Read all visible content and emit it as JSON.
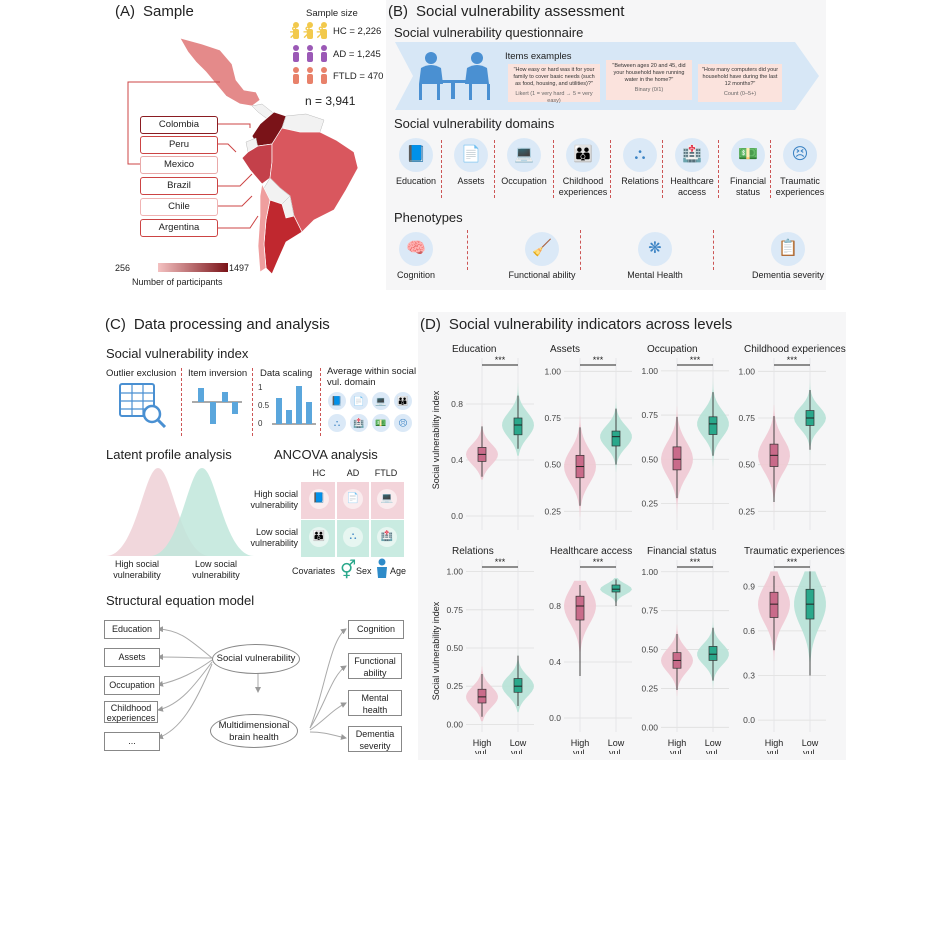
{
  "panel_a": {
    "title_letter": "(A)",
    "title": "Sample",
    "sample_size_label": "Sample size",
    "groups": [
      {
        "label": "HC = 2,226",
        "color": "#f2c94c"
      },
      {
        "label": "AD = 1,245",
        "color": "#9b59b6"
      },
      {
        "label": "FTLD = 470",
        "color": "#e8816a"
      }
    ],
    "total": "n = 3,941",
    "countries": [
      "Colombia",
      "Peru",
      "Mexico",
      "Brazil",
      "Chile",
      "Argentina"
    ],
    "colorbar_min": "256",
    "colorbar_max": "1497",
    "colorbar_label": "Number of participants"
  },
  "panel_b": {
    "title_letter": "(B)",
    "title": "Social vulnerability assessment",
    "questionnaire_title": "Social vulnerability questionnaire",
    "items_examples_label": "Items examples",
    "items": [
      {
        "text": "\"How easy or hard was it for your family to cover basic needs (such as food, housing, and utilities)?\"",
        "scale": "Likert (1 = very hard → 5 = very easy)"
      },
      {
        "text": "\"Between ages 20 and 45, did your household have running water in the home?\"",
        "scale": "Binary (0/1)"
      },
      {
        "text": "\"How many computers did your household have during the last 12 months?\"",
        "scale": "Count (0–5+)"
      }
    ],
    "domains_title": "Social vulnerability domains",
    "domains": [
      {
        "label": "Education",
        "icon": "book-icon",
        "glyph": "📘"
      },
      {
        "label": "Assets",
        "icon": "document-icon",
        "glyph": "📄"
      },
      {
        "label": "Occupation",
        "icon": "desk-worker-icon",
        "glyph": "💻"
      },
      {
        "label": "Childhood experiences",
        "icon": "family-icon",
        "glyph": "👪"
      },
      {
        "label": "Relations",
        "icon": "network-icon",
        "glyph": "⛬"
      },
      {
        "label": "Healthcare access",
        "icon": "hospital-icon",
        "glyph": "🏥"
      },
      {
        "label": "Financial status",
        "icon": "banknote-icon",
        "glyph": "💵"
      },
      {
        "label": "Traumatic experiences",
        "icon": "distressed-person-icon",
        "glyph": "😣"
      }
    ],
    "phenotypes_title": "Phenotypes",
    "phenotypes": [
      {
        "label": "Cognition",
        "icon": "brain-head-icon",
        "glyph": "🧠"
      },
      {
        "label": "Functional ability",
        "icon": "person-task-icon",
        "glyph": "🧹"
      },
      {
        "label": "Mental Health",
        "icon": "mind-network-icon",
        "glyph": "❋"
      },
      {
        "label": "Dementia severity",
        "icon": "clipboard-icon",
        "glyph": "📋"
      }
    ]
  },
  "panel_c": {
    "title_letter": "(C)",
    "title": "Data processing and analysis",
    "svi_title": "Social vulnerability index",
    "steps": [
      "Outlier exclusion",
      "Item inversion",
      "Data scaling",
      "Average within social vul. domain"
    ],
    "scaling_ticks": [
      "1",
      "0.5",
      "0"
    ],
    "lpa_title": "Latent profile analysis",
    "lpa_labels": [
      "High social vulnerability",
      "Low social vulnerability"
    ],
    "ancova_title": "ANCOVA analysis",
    "ancova_cols": [
      "HC",
      "AD",
      "FTLD"
    ],
    "ancova_rows": [
      "High social vulnerability",
      "Low social vulnerability"
    ],
    "covariates_label": "Covariates",
    "covariates": [
      "Sex",
      "Age"
    ],
    "sem_title": "Structural equation model",
    "sem_left": [
      "Education",
      "Assets",
      "Occupation",
      "Childhood experiences",
      "..."
    ],
    "sem_center_top": "Social vulnerability",
    "sem_center_bottom": "Multidimensional brain health",
    "sem_right": [
      "Cognition",
      "Functional ability",
      "Mental health",
      "Dementia severity"
    ]
  },
  "panel_d": {
    "title_letter": "(D)",
    "title": "Social vulnerability indicators across levels",
    "ylabel": "Social vulnerability index",
    "xcats": [
      "High vul.",
      "Low vul."
    ],
    "sig": "***",
    "colors": {
      "high": "#c96b8a",
      "high_fill": "#efc9d3",
      "low": "#2aa88b",
      "low_fill": "#b7e2d6"
    }
  },
  "chart_data": [
    {
      "type": "violin",
      "title": "Education",
      "ylim": [
        -0.1,
        1.1
      ],
      "yticks": [
        "0.0",
        "0.4",
        "0.8"
      ],
      "ytick_values": [
        0,
        0.4,
        0.8
      ],
      "series": [
        {
          "name": "High vul.",
          "median": 0.44,
          "q1": 0.39,
          "q3": 0.49,
          "whisker_low": 0.28,
          "whisker_high": 0.64,
          "min": 0.26,
          "max": 0.74
        },
        {
          "name": "Low vul.",
          "median": 0.65,
          "q1": 0.58,
          "q3": 0.7,
          "whisker_low": 0.48,
          "whisker_high": 0.86,
          "min": 0.43,
          "max": 0.95
        }
      ]
    },
    {
      "type": "violin",
      "title": "Assets",
      "ylim": [
        0.15,
        1.05
      ],
      "yticks": [
        "0.25",
        "0.50",
        "0.75",
        "1.00"
      ],
      "ytick_values": [
        0.25,
        0.5,
        0.75,
        1.0
      ],
      "series": [
        {
          "name": "High vul.",
          "median": 0.49,
          "q1": 0.43,
          "q3": 0.55,
          "whisker_low": 0.28,
          "whisker_high": 0.7,
          "min": 0.22,
          "max": 0.76
        },
        {
          "name": "Low vul.",
          "median": 0.65,
          "q1": 0.6,
          "q3": 0.68,
          "whisker_low": 0.5,
          "whisker_high": 0.8,
          "min": 0.46,
          "max": 0.86
        }
      ]
    },
    {
      "type": "violin",
      "title": "Occupation",
      "ylim": [
        0.1,
        1.05
      ],
      "yticks": [
        "0.25",
        "0.50",
        "0.75",
        "1.00"
      ],
      "ytick_values": [
        0.25,
        0.5,
        0.75,
        1.0
      ],
      "series": [
        {
          "name": "High vul.",
          "median": 0.5,
          "q1": 0.44,
          "q3": 0.57,
          "whisker_low": 0.28,
          "whisker_high": 0.74,
          "min": 0.16,
          "max": 0.8
        },
        {
          "name": "Low vul.",
          "median": 0.7,
          "q1": 0.64,
          "q3": 0.74,
          "whisker_low": 0.52,
          "whisker_high": 0.88,
          "min": 0.46,
          "max": 0.96
        }
      ]
    },
    {
      "type": "violin",
      "title": "Childhood experiences",
      "ylim": [
        0.15,
        1.05
      ],
      "yticks": [
        "0.25",
        "0.50",
        "0.75",
        "1.00"
      ],
      "ytick_values": [
        0.25,
        0.5,
        0.75,
        1.0
      ],
      "series": [
        {
          "name": "High vul.",
          "median": 0.55,
          "q1": 0.49,
          "q3": 0.61,
          "whisker_low": 0.3,
          "whisker_high": 0.76,
          "min": 0.22,
          "max": 0.82
        },
        {
          "name": "Low vul.",
          "median": 0.75,
          "q1": 0.71,
          "q3": 0.79,
          "whisker_low": 0.58,
          "whisker_high": 0.9,
          "min": 0.5,
          "max": 0.96
        }
      ]
    },
    {
      "type": "violin",
      "title": "Relations",
      "ylim": [
        -0.05,
        1.05
      ],
      "yticks": [
        "0.00",
        "0.25",
        "0.50",
        "0.75",
        "1.00"
      ],
      "ytick_values": [
        0,
        0.25,
        0.5,
        0.75,
        1.0
      ],
      "series": [
        {
          "name": "High vul.",
          "median": 0.18,
          "q1": 0.14,
          "q3": 0.23,
          "whisker_low": 0.05,
          "whisker_high": 0.33,
          "min": 0.02,
          "max": 0.38
        },
        {
          "name": "Low vul.",
          "median": 0.25,
          "q1": 0.21,
          "q3": 0.3,
          "whisker_low": 0.12,
          "whisker_high": 0.45,
          "min": 0.08,
          "max": 0.62
        }
      ]
    },
    {
      "type": "violin",
      "title": "Healthcare access",
      "ylim": [
        -0.1,
        1.1
      ],
      "yticks": [
        "0.0",
        "0.4",
        "0.8"
      ],
      "ytick_values": [
        0,
        0.4,
        0.8
      ],
      "series": [
        {
          "name": "High vul.",
          "median": 0.8,
          "q1": 0.7,
          "q3": 0.87,
          "whisker_low": 0.3,
          "whisker_high": 0.95,
          "min": 0.3,
          "max": 0.98
        },
        {
          "name": "Low vul.",
          "median": 0.92,
          "q1": 0.9,
          "q3": 0.95,
          "whisker_low": 0.8,
          "whisker_high": 0.99,
          "min": 0.6,
          "max": 1.0
        }
      ]
    },
    {
      "type": "violin",
      "title": "Financial status",
      "ylim": [
        -0.03,
        1.05
      ],
      "yticks": [
        "0.00",
        "0.25",
        "0.50",
        "0.75",
        "1.00"
      ],
      "ytick_values": [
        0,
        0.25,
        0.5,
        0.75,
        1.0
      ],
      "series": [
        {
          "name": "High vul.",
          "median": 0.43,
          "q1": 0.38,
          "q3": 0.48,
          "whisker_low": 0.24,
          "whisker_high": 0.6,
          "min": 0.2,
          "max": 0.66
        },
        {
          "name": "Low vul.",
          "median": 0.47,
          "q1": 0.43,
          "q3": 0.52,
          "whisker_low": 0.3,
          "whisker_high": 0.64,
          "min": 0.24,
          "max": 0.72
        }
      ]
    },
    {
      "type": "violin",
      "title": "Traumatic experiences",
      "ylim": [
        -0.08,
        1.05
      ],
      "yticks": [
        "0.0",
        "0.3",
        "0.6",
        "0.9"
      ],
      "ytick_values": [
        0,
        0.3,
        0.6,
        0.9
      ],
      "series": [
        {
          "name": "High vul.",
          "median": 0.78,
          "q1": 0.69,
          "q3": 0.86,
          "whisker_low": 0.47,
          "whisker_high": 0.97,
          "min": 0.4,
          "max": 1.0
        },
        {
          "name": "Low vul.",
          "median": 0.78,
          "q1": 0.68,
          "q3": 0.88,
          "whisker_low": 0.3,
          "whisker_high": 1.0,
          "min": 0.3,
          "max": 1.0
        }
      ]
    }
  ]
}
